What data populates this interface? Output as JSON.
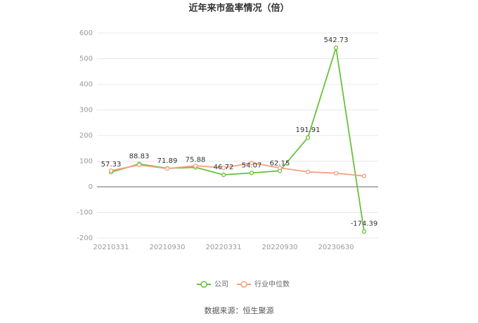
{
  "chart_data": {
    "type": "line",
    "title": "近年来市盈率情况（倍）",
    "source": "数据来源：恒生聚源",
    "categories": [
      "20210331",
      null,
      "20210930",
      null,
      "20220331",
      null,
      "20220930",
      null,
      "20230630",
      null
    ],
    "series": [
      {
        "name": "公司",
        "color": "#66c23a",
        "values": [
          57.33,
          88.83,
          71.89,
          75.88,
          46.72,
          54.07,
          62.15,
          191.91,
          542.73,
          -174.39
        ]
      },
      {
        "name": "行业中位数",
        "color": "#f4a07c",
        "values": [
          63,
          85,
          71,
          82,
          74,
          93,
          74,
          58,
          53,
          42
        ]
      }
    ],
    "ylim": [
      -200,
      600
    ],
    "yticks": [
      -200,
      -100,
      0,
      100,
      200,
      300,
      400,
      500,
      600
    ],
    "grid": true,
    "legend": "bottom"
  }
}
